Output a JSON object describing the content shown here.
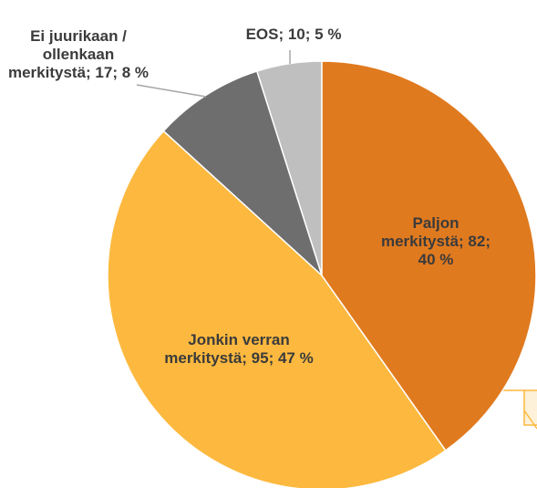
{
  "chart_data": {
    "type": "pie",
    "value_labels": [
      "Paljon merkitystä; 82; 40 %",
      "Jonkin verran merkitystä; 95; 47 %",
      "Ei juurikaan / ollenkaan merkitystä; 17; 8 %",
      "EOS; 10; 5 %"
    ],
    "values": [
      82,
      95,
      17,
      10
    ],
    "colors": [
      "#e07a1f",
      "#fdb93f",
      "#6e6e6e",
      "#bfbfbf"
    ]
  }
}
